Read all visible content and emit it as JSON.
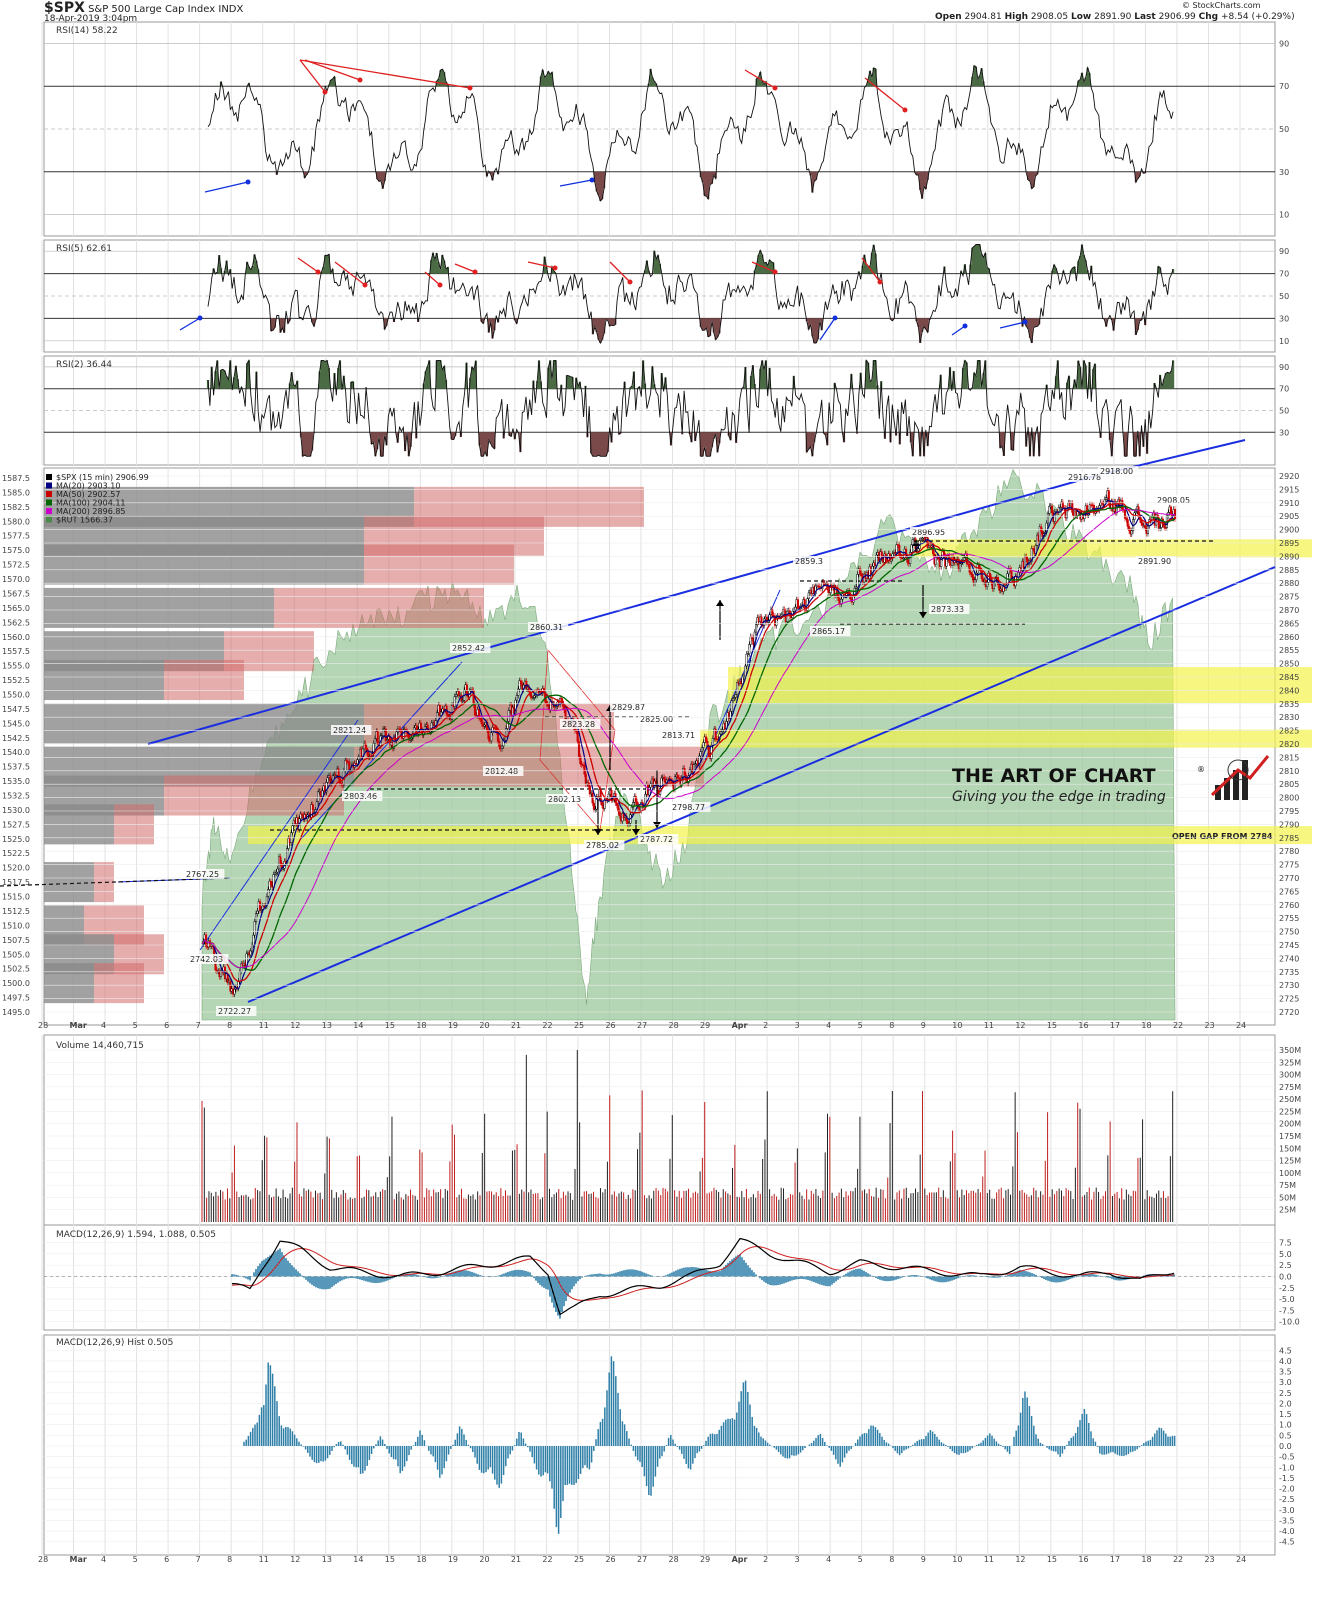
{
  "header": {
    "ticker": "$SPX",
    "name": "S&P 500 Large Cap Index",
    "exchange": "INDX",
    "date": "18-Apr-2019 3:04pm",
    "open_label": "Open",
    "open": "2904.81",
    "high_label": "High",
    "high": "2908.05",
    "low_label": "Low",
    "low": "2891.90",
    "last_label": "Last",
    "last": "2906.99",
    "chg_label": "Chg",
    "chg": "+8.54 (+0.29%)",
    "source": "© StockCharts.com"
  },
  "panels": {
    "rsi14": {
      "label": "RSI(14) 58.22",
      "ticks": [
        90,
        70,
        50,
        30,
        10
      ]
    },
    "rsi5": {
      "label": "RSI(5) 62.61",
      "ticks": [
        90,
        70,
        50,
        30,
        10
      ]
    },
    "rsi2": {
      "label": "RSI(2) 36.44",
      "ticks": [
        90,
        70,
        50,
        30
      ]
    },
    "price": {
      "legend": [
        {
          "text": "$SPX (15 min) 2906.99",
          "color": "#000000"
        },
        {
          "text": "MA(20) 2903.10",
          "color": "#000080"
        },
        {
          "text": "MA(50) 2902.57",
          "color": "#cc0000"
        },
        {
          "text": "MA(100) 2904.11",
          "color": "#006600"
        },
        {
          "text": "MA(200) 2896.85",
          "color": "#cc00cc"
        },
        {
          "text": "$RUT 1566.37",
          "color": "#4a8a4a"
        }
      ],
      "right_ticks": [
        2920,
        2915,
        2910,
        2905,
        2900,
        2895,
        2890,
        2885,
        2880,
        2875,
        2870,
        2865,
        2860,
        2855,
        2850,
        2845,
        2840,
        2835,
        2830,
        2825,
        2820,
        2815,
        2810,
        2805,
        2800,
        2795,
        2790,
        2785,
        2780,
        2775,
        2770,
        2765,
        2760,
        2755,
        2750,
        2745,
        2740,
        2735,
        2730,
        2725,
        2720
      ],
      "left_ticks": [
        "1587.5",
        "1585.0",
        "1582.5",
        "1580.0",
        "1577.5",
        "1575.0",
        "1572.5",
        "1570.0",
        "1567.5",
        "1565.0",
        "1562.5",
        "1560.0",
        "1557.5",
        "1555.0",
        "1552.5",
        "1550.0",
        "1547.5",
        "1545.0",
        "1542.5",
        "1540.0",
        "1537.5",
        "1535.0",
        "1532.5",
        "1530.0",
        "1527.5",
        "1525.0",
        "1522.5",
        "1520.0",
        "1517.5",
        "1515.0",
        "1512.5",
        "1510.0",
        "1507.5",
        "1505.0",
        "1502.5",
        "1500.0",
        "1497.5",
        "1495.0"
      ],
      "annotations": [
        "2767.25",
        "2742.03",
        "2722.27",
        "2803.46",
        "2821.24",
        "2852.42",
        "2812.48",
        "2860.31",
        "2823.28",
        "2802.13",
        "2785.02",
        "2787.72",
        "2829.87",
        "2825.00",
        "2813.71",
        "2798.77",
        "2859.3",
        "2865.17",
        "2873.33",
        "2896.95",
        "2916.78",
        "2918.00",
        "2908.05",
        "2891.90"
      ],
      "gap_label": "OPEN GAP FROM 2784",
      "zones": [
        2893,
        2842,
        2822,
        2786
      ],
      "volume_profile": [
        {
          "price": 1582.5,
          "down": 370,
          "up": 230
        },
        {
          "price": 1577.5,
          "down": 320,
          "up": 180
        },
        {
          "price": 1572.5,
          "down": 320,
          "up": 150
        },
        {
          "price": 1565.0,
          "down": 230,
          "up": 210
        },
        {
          "price": 1557.5,
          "down": 180,
          "up": 90
        },
        {
          "price": 1552.5,
          "down": 120,
          "up": 80
        },
        {
          "price": 1545.0,
          "down": 320,
          "up": 250
        },
        {
          "price": 1537.5,
          "down": 310,
          "up": 350
        },
        {
          "price": 1532.5,
          "down": 120,
          "up": 180
        },
        {
          "price": 1527.5,
          "down": 70,
          "up": 40
        },
        {
          "price": 1517.5,
          "down": 50,
          "up": 20
        },
        {
          "price": 1510.0,
          "down": 40,
          "up": 60
        },
        {
          "price": 1505.0,
          "down": 70,
          "up": 50
        },
        {
          "price": 1500.0,
          "down": 50,
          "up": 50
        }
      ]
    },
    "volume": {
      "label": "Volume 14,460,715",
      "ticks": [
        "350M",
        "325M",
        "300M",
        "275M",
        "250M",
        "225M",
        "200M",
        "175M",
        "150M",
        "125M",
        "100M",
        "75M",
        "50M",
        "25M"
      ]
    },
    "macd": {
      "label": "MACD(12,26,9) 1.594, 1.088, 0.505",
      "ticks": [
        "7.5",
        "5.0",
        "2.5",
        "0.0",
        "-2.5",
        "-5.0",
        "-7.5",
        "-10.0"
      ]
    },
    "hist": {
      "label": "MACD(12,26,9) Hist 0.505",
      "ticks": [
        "4.5",
        "4.0",
        "3.5",
        "3.0",
        "2.5",
        "2.0",
        "1.5",
        "1.0",
        "0.5",
        "0.0",
        "-0.5",
        "-1.0",
        "-1.5",
        "-2.0",
        "-2.5",
        "-3.0",
        "-3.5",
        "-4.0",
        "-4.5"
      ]
    }
  },
  "x_axis": {
    "labels": [
      "28",
      "Mar",
      "4",
      "5",
      "6",
      "7",
      "8",
      "11",
      "12",
      "13",
      "14",
      "15",
      "18",
      "19",
      "20",
      "21",
      "22",
      "25",
      "26",
      "27",
      "28",
      "29",
      "Apr",
      "2",
      "3",
      "4",
      "5",
      "8",
      "9",
      "10",
      "11",
      "12",
      "15",
      "16",
      "17",
      "18",
      "22",
      "23",
      "24"
    ]
  },
  "watermark": {
    "title": "THE ART OF CHART",
    "reg": "®",
    "tagline": "Giving you the edge in trading"
  },
  "chart_data": {
    "type": "line",
    "title": "",
    "x_unit": "trading days",
    "x": [
      "Mar 7",
      "Mar 8",
      "Mar 11",
      "Mar 12",
      "Mar 13",
      "Mar 14",
      "Mar 15",
      "Mar 18",
      "Mar 19",
      "Mar 20",
      "Mar 21",
      "Mar 22",
      "Mar 25",
      "Mar 26",
      "Mar 27",
      "Mar 28",
      "Mar 29",
      "Apr 1",
      "Apr 2",
      "Apr 3",
      "Apr 4",
      "Apr 5",
      "Apr 8",
      "Apr 9",
      "Apr 10",
      "Apr 11",
      "Apr 12",
      "Apr 15",
      "Apr 16",
      "Apr 17",
      "Apr 18"
    ],
    "series": [
      {
        "name": "$SPX",
        "values": [
          2745,
          2728,
          2770,
          2790,
          2808,
          2818,
          2822,
          2830,
          2840,
          2820,
          2845,
          2835,
          2800,
          2795,
          2805,
          2810,
          2826,
          2862,
          2868,
          2875,
          2880,
          2890,
          2892,
          2888,
          2884,
          2882,
          2905,
          2906,
          2910,
          2902,
          2904
        ]
      }
    ],
    "ylim": [
      2715,
      2922
    ]
  }
}
